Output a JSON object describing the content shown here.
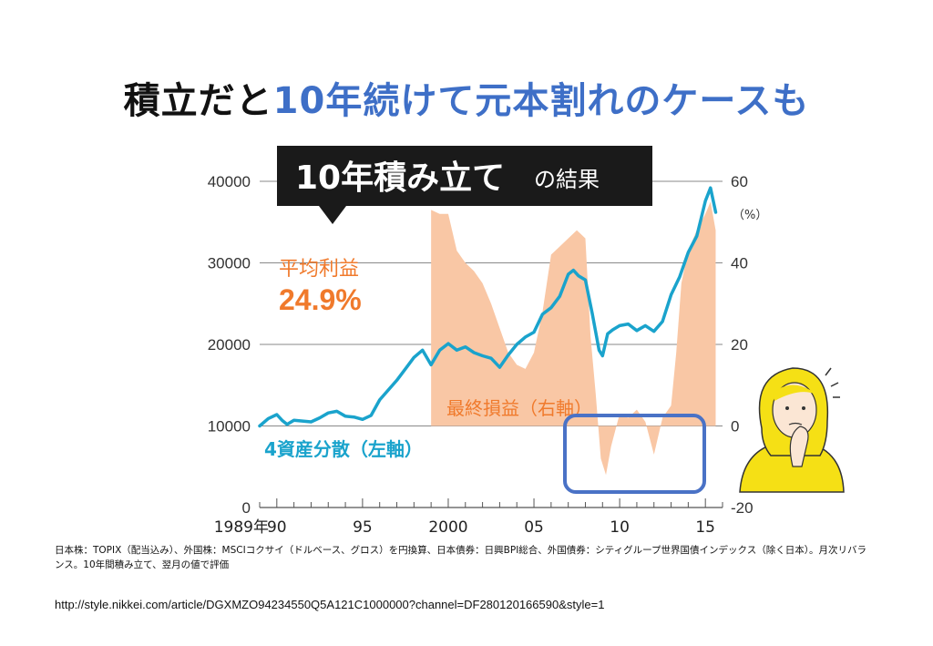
{
  "title": {
    "part_dark": "積立だと",
    "part_blue": "10年続けて元本割れのケースも"
  },
  "banner": {
    "main": "10年積み立て",
    "suffix": "の結果"
  },
  "annotations": {
    "avg_label": "平均利益",
    "avg_value": "24.9%",
    "loss_label": "最終損益（右軸）",
    "asset_label": "4資産分散（左軸）"
  },
  "footnote": "日本株：TOPIX（配当込み）、外国株：MSCIコクサイ（ドルベース、グロス）を円換算、日本債券：日興BPI総合、外国債券：シティグループ世界国債インデックス（除く日本）。月次リバランス。10年間積み立て、翌月の値で評価",
  "source_url": "http://style.nikkei.com/article/DGXMZO94234550Q5A121C1000000?channel=DF280120166590&style=1",
  "colors": {
    "line": "#1aa3cc",
    "area": "#f9c7a5",
    "accent": "#f07a2c",
    "highlight": "#4a72c6",
    "banner": "#1a1a1a"
  },
  "chart_data": {
    "type": "line",
    "x_range": [
      1989,
      2016
    ],
    "x_ticks": [
      {
        "x": 1989,
        "label": "1989年"
      },
      {
        "x": 1990,
        "label": "90"
      },
      {
        "x": 1995,
        "label": "95"
      },
      {
        "x": 2000,
        "label": "2000"
      },
      {
        "x": 2005,
        "label": "05"
      },
      {
        "x": 2010,
        "label": "10"
      },
      {
        "x": 2015,
        "label": "15"
      }
    ],
    "y_left": {
      "ylim": [
        0,
        40000
      ],
      "ticks": [
        "0",
        "10000",
        "20000",
        "30000",
        "40000"
      ]
    },
    "y_right": {
      "ylim": [
        -20,
        60
      ],
      "ticks": [
        "-20",
        "0",
        "20",
        "40",
        "60"
      ],
      "unit": "（%）"
    },
    "line_series": {
      "x": [
        1989.0,
        1989.5,
        1990.0,
        1990.3,
        1990.6,
        1991.0,
        1991.5,
        1992.0,
        1992.5,
        1993.0,
        1993.5,
        1994.0,
        1994.5,
        1995.0,
        1995.5,
        1996.0,
        1996.5,
        1997.0,
        1997.5,
        1998.0,
        1998.5,
        1999.0,
        1999.5,
        2000.0,
        2000.5,
        2001.0,
        2001.5,
        2002.0,
        2002.5,
        2003.0,
        2003.5,
        2004.0,
        2004.5,
        2005.0,
        2005.5,
        2006.0,
        2006.5,
        2007.0,
        2007.3,
        2007.6,
        2008.0,
        2008.4,
        2008.8,
        2009.0,
        2009.3,
        2009.6,
        2010.0,
        2010.5,
        2011.0,
        2011.5,
        2012.0,
        2012.5,
        2013.0,
        2013.5,
        2014.0,
        2014.5,
        2015.0,
        2015.3,
        2015.6
      ],
      "values": [
        10000,
        10900,
        11400,
        10700,
        10200,
        10700,
        10600,
        10500,
        11000,
        11600,
        11800,
        11200,
        11100,
        10800,
        11300,
        13200,
        14400,
        15600,
        17000,
        18400,
        19300,
        17500,
        19300,
        20100,
        19300,
        19700,
        19000,
        18600,
        18300,
        17200,
        18700,
        20000,
        20900,
        21500,
        23700,
        24500,
        25900,
        28600,
        29100,
        28400,
        27900,
        23800,
        19300,
        18600,
        21300,
        21800,
        22300,
        22500,
        21700,
        22300,
        21600,
        22800,
        26100,
        28300,
        31300,
        33300,
        37600,
        39200,
        36200
      ]
    },
    "area_series": {
      "x": [
        1999.0,
        1999.5,
        2000.0,
        2000.5,
        2001.0,
        2001.5,
        2002.0,
        2002.5,
        2003.0,
        2003.5,
        2004.0,
        2004.5,
        2005.0,
        2005.5,
        2006.0,
        2006.5,
        2007.0,
        2007.5,
        2008.0,
        2008.3,
        2008.6,
        2008.9,
        2009.2,
        2009.5,
        2010.0,
        2010.5,
        2011.0,
        2011.5,
        2012.0,
        2012.5,
        2013.0,
        2013.3,
        2013.6,
        2014.0,
        2014.5,
        2015.0,
        2015.3,
        2015.6
      ],
      "values": [
        53,
        52,
        52,
        43,
        40,
        38,
        35,
        30,
        24,
        18,
        15,
        14,
        18,
        28,
        42,
        44,
        46,
        48,
        46,
        22,
        8,
        -8,
        -12,
        -5,
        3,
        2,
        4,
        1,
        -7,
        2,
        5,
        18,
        35,
        43,
        48,
        52,
        55,
        48
      ]
    }
  }
}
